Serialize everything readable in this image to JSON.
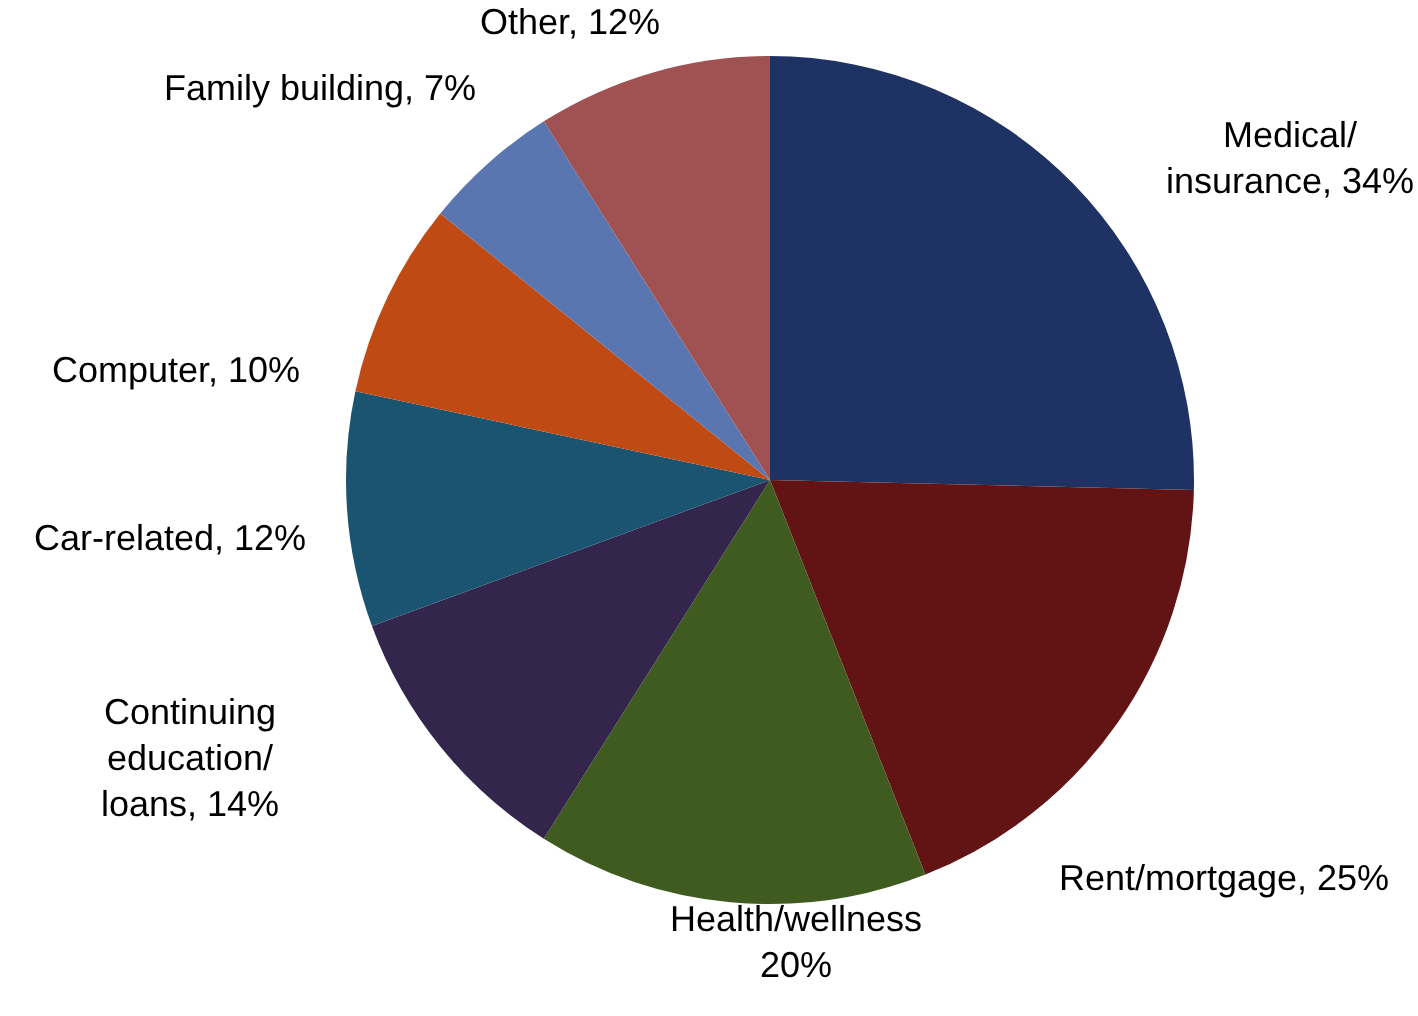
{
  "chart_data": {
    "type": "pie",
    "categories": [
      "Medical/insurance",
      "Rent/mortgage",
      "Health/wellness",
      "Continuing education/loans",
      "Car-related",
      "Computer",
      "Family building",
      "Other"
    ],
    "values": [
      34,
      25,
      20,
      14,
      12,
      10,
      7,
      12
    ],
    "value_labels": [
      "34%",
      "25%",
      "20%",
      "14%",
      "12%",
      "10%",
      "7%",
      "12%"
    ],
    "colors": [
      "#1f3264",
      "#621414",
      "#3f5b1f",
      "#33254c",
      "#1b5470",
      "#c04a14",
      "#5a76b0",
      "#a05252"
    ],
    "legend": false
  }
}
